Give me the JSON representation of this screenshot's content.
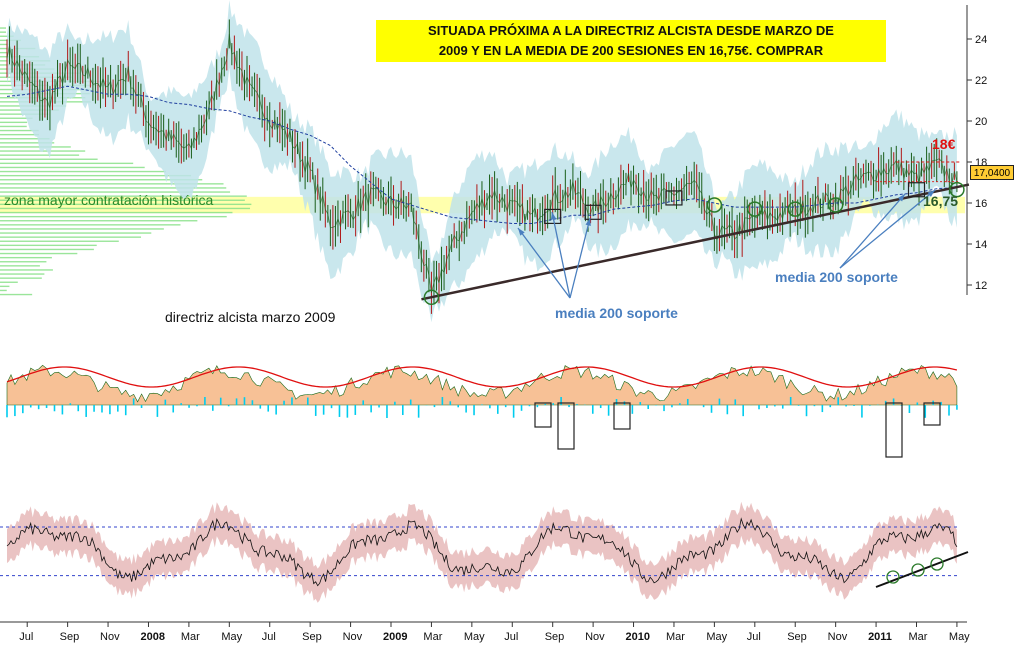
{
  "headline": {
    "line1": "SITUADA PRÓXIMA A LA DIRECTRIZ ALCISTA DESDE MARZO DE",
    "line2": "2009 Y EN LA MEDIA DE 200 SESIONES EN 16,75€. COMPRAR"
  },
  "annotations": {
    "zone": "zona mayor contratación histórica",
    "trendline": "directriz alcista marzo 2009",
    "support_mid": "media 200 soporte",
    "support_right": "media 200 soporte",
    "target": "18€",
    "support_level": "16,75",
    "last_price": "17,0400"
  },
  "colors": {
    "price_line": "#1a5e1a",
    "bollinger_band": "#bfe3ea",
    "ma200": "#1f3f9f",
    "zone_highlight": "#ffff99",
    "volume_profile": "#88e088",
    "trendline": "#3a2a2a",
    "osc_fill": "#f7c196",
    "osc_signal": "#e01010",
    "osc_hist": "#00ccee",
    "rsi_band": "#e6b8b8",
    "target_text": "#e01010",
    "support_text": "#4a7fbf"
  },
  "chart_data": [
    {
      "type": "line",
      "name": "price",
      "xlabels": [
        "Jul",
        "Sep",
        "Nov",
        "2008",
        "Mar",
        "May",
        "Jul",
        "Sep",
        "Nov",
        "2009",
        "Mar",
        "May",
        "Jul",
        "Sep",
        "Nov",
        "2010",
        "Mar",
        "May",
        "Jul",
        "Sep",
        "Nov",
        "2011",
        "Mar",
        "May"
      ],
      "bold_labels": [
        "2008",
        "2009",
        "2010",
        "2011"
      ],
      "yticks": [
        12,
        14,
        16,
        18,
        20,
        22,
        24
      ],
      "ylim": [
        11,
        25.3
      ],
      "x": [
        "2007-06",
        "2007-07",
        "2007-08",
        "2007-09",
        "2007-10",
        "2007-11",
        "2007-12",
        "2008-01",
        "2008-02",
        "2008-03",
        "2008-04",
        "2008-05",
        "2008-06",
        "2008-07",
        "2008-08",
        "2008-09",
        "2008-10",
        "2008-11",
        "2008-12",
        "2009-01",
        "2009-02",
        "2009-03",
        "2009-04",
        "2009-05",
        "2009-06",
        "2009-07",
        "2009-08",
        "2009-09",
        "2009-10",
        "2009-11",
        "2009-12",
        "2010-01",
        "2010-02",
        "2010-03",
        "2010-04",
        "2010-05",
        "2010-06",
        "2010-07",
        "2010-08",
        "2010-09",
        "2010-10",
        "2010-11",
        "2010-12",
        "2011-01",
        "2011-02",
        "2011-03",
        "2011-04",
        "2011-05"
      ],
      "close": [
        23.5,
        22,
        20.8,
        22.6,
        22.3,
        21.5,
        22.3,
        20,
        19.2,
        18.5,
        20.5,
        23.8,
        21.5,
        20.2,
        19.2,
        17.5,
        15,
        15.5,
        16.4,
        16,
        15.8,
        11.5,
        13.8,
        15.5,
        16.5,
        15.8,
        15.3,
        16.2,
        16.6,
        15.6,
        16.5,
        17.2,
        16.1,
        16.5,
        16.9,
        14.6,
        14.5,
        15.3,
        15.4,
        15.6,
        16,
        16.2,
        17,
        17.5,
        17.8,
        17.2,
        17.9,
        17.04
      ],
      "ma200": [
        21.2,
        21.3,
        21.5,
        21.7,
        21.5,
        21.3,
        21.3,
        21.2,
        20.9,
        20.8,
        20.6,
        20.5,
        20.2,
        20,
        19.6,
        19.3,
        18.8,
        17.8,
        17,
        16.2,
        15.9,
        15.6,
        15.3,
        15.2,
        15.1,
        15,
        15,
        15.2,
        15.4,
        15.4,
        15.7,
        15.8,
        15.9,
        16.1,
        16.2,
        16,
        15.8,
        15.8,
        15.8,
        15.8,
        15.9,
        16,
        16,
        16.2,
        16.4,
        16.5,
        16.7,
        16.75
      ],
      "trendline": {
        "from": [
          "2009-03",
          11.4
        ],
        "to": [
          "2011-05",
          16.9
        ]
      },
      "zone": [
        15.5,
        16.3
      ],
      "target_level": 18,
      "support_level": 16.75,
      "last_price": 17.04,
      "support_touches": [
        "2010-05",
        "2010-07",
        "2010-09",
        "2010-11",
        "2011-05"
      ]
    },
    {
      "type": "area",
      "name": "momentum oscillator",
      "note_style": "orange area with red signal line and cyan histogram; boxes highlight dips"
    },
    {
      "type": "line",
      "name": "rsi",
      "upper": 70,
      "lower": 30,
      "ylim": [
        0,
        100
      ]
    }
  ]
}
